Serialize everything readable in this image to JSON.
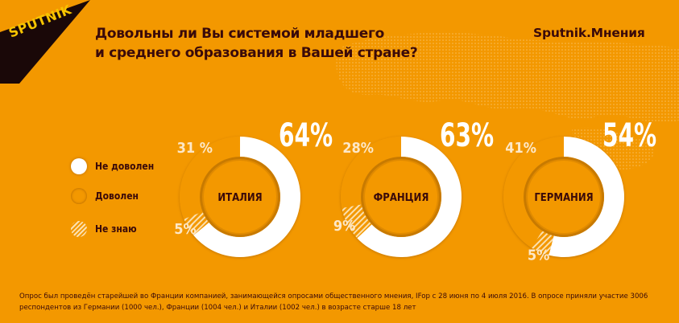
{
  "logo": {
    "text": "SPUTNIK"
  },
  "brand": "Sputnik.Мнения",
  "title": {
    "line1": "Довольны ли Вы системой младшего",
    "line2": "и среднего образования в Вашей стране?"
  },
  "colors": {
    "background": "#f39800",
    "dark_text": "#3a0a0a",
    "not_satisfied": "#ffffff",
    "satisfied": "#f39800",
    "dont_know": "#f7d07a"
  },
  "legend": [
    {
      "label": "Не доволен",
      "key": "not_satisfied"
    },
    {
      "label": "Доволен",
      "key": "satisfied"
    },
    {
      "label": "Не знаю",
      "key": "dont_know"
    }
  ],
  "chart_data": {
    "type": "pie",
    "variant": "donut",
    "title": "Довольны ли Вы системой младшего и среднего образования в Вашей стране?",
    "categories": [
      "Не доволен",
      "Доволен",
      "Не знаю"
    ],
    "series": [
      {
        "name": "ИТАЛИЯ",
        "values": [
          64,
          31,
          5
        ],
        "labels": [
          "64%",
          "31 %",
          "5%"
        ]
      },
      {
        "name": "ФРАНЦИЯ",
        "values": [
          63,
          28,
          9
        ],
        "labels": [
          "63%",
          "28%",
          "9%"
        ]
      },
      {
        "name": "ГЕРМАНИЯ",
        "values": [
          54,
          41,
          5
        ],
        "labels": [
          "54%",
          "41%",
          "5%"
        ]
      }
    ]
  },
  "footnote": {
    "line1": "Опрос был проведён старейшей во Франции компанией, занимающейся опросами общественного мнения, IFop с 28 июня по 4 июля 2016. В опросе приняли участие 3006",
    "line2": "респондентов из Германии (1000 чел.), Франции (1004 чел.) и Италии (1002 чел.) в возрасте старше 18 лет"
  }
}
